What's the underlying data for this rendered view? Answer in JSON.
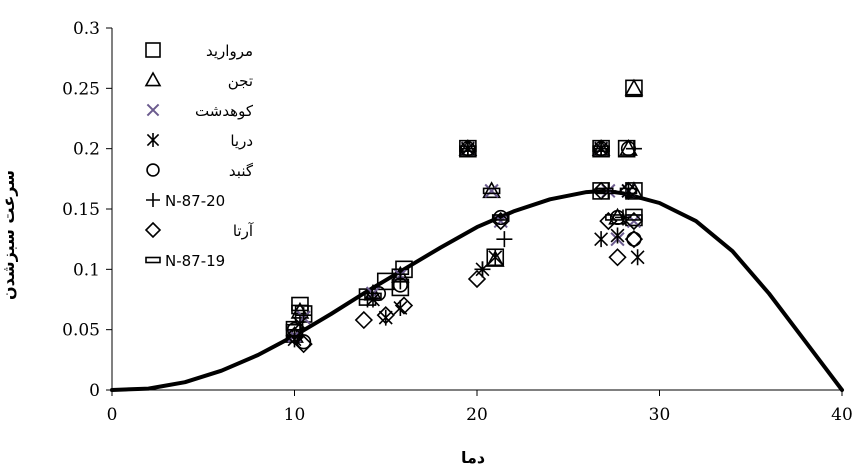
{
  "chart_data": {
    "type": "scatter",
    "title": "",
    "xlabel": "دما",
    "ylabel": "سرعت سبزشدن",
    "xlim": [
      0,
      40
    ],
    "ylim": [
      0,
      0.3
    ],
    "x_ticks": [
      "0",
      "10",
      "20",
      "30",
      "40"
    ],
    "y_ticks": [
      "0",
      "0.05",
      "0.1",
      "0.15",
      "0.2",
      "0.25",
      "0.3"
    ],
    "grid": false,
    "legend_position": "top-left",
    "fitted_curve": {
      "name": "",
      "color": "#000000",
      "points": [
        [
          0,
          0
        ],
        [
          2,
          0.0012
        ],
        [
          4,
          0.0065
        ],
        [
          6,
          0.016
        ],
        [
          8,
          0.029
        ],
        [
          10,
          0.045
        ],
        [
          12,
          0.063
        ],
        [
          14,
          0.082
        ],
        [
          16,
          0.1
        ],
        [
          18,
          0.118
        ],
        [
          20,
          0.135
        ],
        [
          22,
          0.148
        ],
        [
          24,
          0.158
        ],
        [
          26,
          0.164
        ],
        [
          27,
          0.165
        ],
        [
          28,
          0.163
        ],
        [
          30,
          0.155
        ],
        [
          32,
          0.14
        ],
        [
          34,
          0.115
        ],
        [
          36,
          0.08
        ],
        [
          38,
          0.04
        ],
        [
          40,
          0
        ]
      ]
    },
    "series": [
      {
        "name": "مرواريد",
        "marker": "square",
        "color": "#000000",
        "points": [
          [
            10,
            0.05
          ],
          [
            10.3,
            0.07
          ],
          [
            10.5,
            0.063
          ],
          [
            14,
            0.077
          ],
          [
            15,
            0.09
          ],
          [
            15.8,
            0.085
          ],
          [
            16,
            0.1
          ],
          [
            19.5,
            0.2
          ],
          [
            21,
            0.11
          ],
          [
            26.8,
            0.2
          ],
          [
            26.8,
            0.165
          ],
          [
            28.2,
            0.2
          ],
          [
            28.6,
            0.25
          ],
          [
            28.6,
            0.165
          ],
          [
            28.6,
            0.143
          ]
        ]
      },
      {
        "name": "تجن",
        "marker": "triangle",
        "color": "#000000",
        "points": [
          [
            10,
            0.045
          ],
          [
            10.3,
            0.065
          ],
          [
            14.3,
            0.08
          ],
          [
            15.8,
            0.095
          ],
          [
            19.5,
            0.2
          ],
          [
            20.8,
            0.165
          ],
          [
            21,
            0.108
          ],
          [
            26.8,
            0.2
          ],
          [
            27.7,
            0.143
          ],
          [
            28.6,
            0.25
          ],
          [
            28.3,
            0.2
          ],
          [
            28.6,
            0.165
          ]
        ]
      },
      {
        "name": "کوهدشت",
        "marker": "x",
        "color": "#6b5b8e",
        "points": [
          [
            10,
            0.045
          ],
          [
            10.5,
            0.06
          ],
          [
            14.3,
            0.08
          ],
          [
            15.8,
            0.095
          ],
          [
            19.5,
            0.2
          ],
          [
            20.8,
            0.165
          ],
          [
            21.3,
            0.14
          ],
          [
            26.8,
            0.2
          ],
          [
            27.2,
            0.165
          ],
          [
            27.7,
            0.125
          ],
          [
            28.3,
            0.165
          ],
          [
            28.6,
            0.14
          ]
        ]
      },
      {
        "name": "دريا",
        "marker": "asterisk",
        "color": "#000000",
        "points": [
          [
            10,
            0.042
          ],
          [
            10.3,
            0.055
          ],
          [
            14.3,
            0.075
          ],
          [
            15,
            0.06
          ],
          [
            15.8,
            0.068
          ],
          [
            19.5,
            0.2
          ],
          [
            20.3,
            0.1
          ],
          [
            21,
            0.11
          ],
          [
            26.8,
            0.2
          ],
          [
            26.8,
            0.125
          ],
          [
            27.7,
            0.128
          ],
          [
            28.3,
            0.165
          ],
          [
            28.8,
            0.11
          ]
        ]
      },
      {
        "name": "گنبد",
        "marker": "circle",
        "color": "#000000",
        "points": [
          [
            10,
            0.05
          ],
          [
            10.5,
            0.04
          ],
          [
            14.6,
            0.08
          ],
          [
            15.8,
            0.087
          ],
          [
            19.5,
            0.2
          ],
          [
            21.3,
            0.143
          ],
          [
            26.8,
            0.2
          ],
          [
            27.7,
            0.143
          ],
          [
            28.3,
            0.2
          ],
          [
            28.6,
            0.125
          ]
        ]
      },
      {
        "name": "N-87-20",
        "marker": "plus",
        "color": "#000000",
        "points": [
          [
            10,
            0.045
          ],
          [
            10.5,
            0.062
          ],
          [
            14,
            0.075
          ],
          [
            15.8,
            0.09
          ],
          [
            19.5,
            0.2
          ],
          [
            20.3,
            0.1
          ],
          [
            21.5,
            0.125
          ],
          [
            26.8,
            0.2
          ],
          [
            27.2,
            0.165
          ],
          [
            28,
            0.143
          ],
          [
            28.6,
            0.2
          ]
        ]
      },
      {
        "name": "آرتا",
        "marker": "diamond",
        "color": "#000000",
        "points": [
          [
            10,
            0.045
          ],
          [
            10.5,
            0.038
          ],
          [
            13.8,
            0.058
          ],
          [
            15,
            0.062
          ],
          [
            16,
            0.07
          ],
          [
            20,
            0.092
          ],
          [
            21.3,
            0.14
          ],
          [
            26.8,
            0.165
          ],
          [
            27.2,
            0.14
          ],
          [
            27.7,
            0.11
          ],
          [
            28.3,
            0.165
          ],
          [
            28.6,
            0.14
          ],
          [
            28.6,
            0.125
          ]
        ]
      },
      {
        "name": "N-87-19",
        "marker": "dash",
        "color": "#000000",
        "points": [
          [
            10,
            0.052
          ],
          [
            10.3,
            0.068
          ],
          [
            14.3,
            0.078
          ],
          [
            15.8,
            0.098
          ],
          [
            19.5,
            0.2
          ],
          [
            20.8,
            0.165
          ],
          [
            21.3,
            0.143
          ],
          [
            26.8,
            0.2
          ],
          [
            27,
            0.165
          ],
          [
            27.5,
            0.143
          ],
          [
            28.3,
            0.165
          ],
          [
            28.6,
            0.143
          ]
        ]
      }
    ]
  }
}
